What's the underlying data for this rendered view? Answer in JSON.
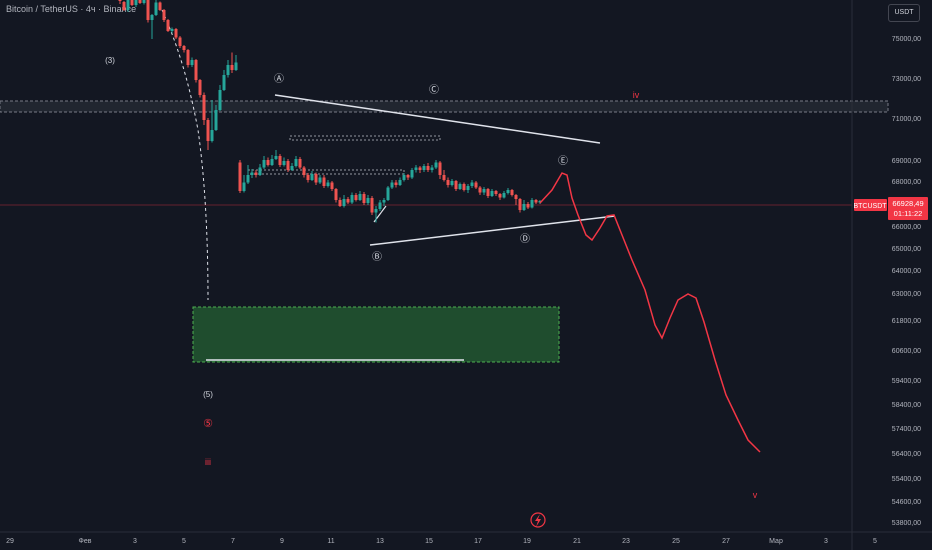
{
  "header": {
    "title": "Bitcoin / TetherUS · 4ч · Binance",
    "currency": "USDT"
  },
  "colors": {
    "background": "#131722",
    "up": "#26a69a",
    "down": "#ef5350",
    "wave_labels": "#b2b5be",
    "red_labels": "#f23645",
    "projection": "#f23645",
    "zone_fill": "#1f4d2e",
    "price_tag": "#f23645"
  },
  "current_price": {
    "symbol": "BTCUSDT",
    "price": "66928,49",
    "countdown": "01:11:22",
    "value": 66928.49
  },
  "chart_data": {
    "type": "candlestick",
    "y_axis": {
      "ticks": [
        "75000,00",
        "73000,00",
        "71000,00",
        "69000,00",
        "68000,00",
        "67000,00",
        "66000,00",
        "65000,00",
        "64000,00",
        "63000,00",
        "61800,00",
        "60600,00",
        "59400,00",
        "58400,00",
        "57400,00",
        "56400,00",
        "55400,00",
        "54600,00",
        "53800,00"
      ]
    },
    "x_axis": {
      "ticks": [
        "29",
        "Фев",
        "3",
        "5",
        "7",
        "9",
        "11",
        "13",
        "15",
        "17",
        "19",
        "21",
        "23",
        "25",
        "27",
        "Мар",
        "3",
        "5"
      ]
    },
    "wave_labels": [
      {
        "text": "(3)",
        "color": "wave"
      },
      {
        "text": "Ⓐ",
        "color": "wave"
      },
      {
        "text": "Ⓒ",
        "color": "wave"
      },
      {
        "text": "Ⓑ",
        "color": "wave"
      },
      {
        "text": "Ⓓ",
        "color": "wave"
      },
      {
        "text": "Ⓔ",
        "color": "wave"
      },
      {
        "text": "(5)",
        "color": "wave"
      },
      {
        "text": "⑤",
        "color": "red"
      },
      {
        "text": "iii",
        "color": "red"
      },
      {
        "text": "iv",
        "color": "red"
      },
      {
        "text": "v",
        "color": "red"
      }
    ],
    "candles": [
      [
        120,
        0,
        0,
        8,
        -10
      ],
      [
        124,
        4,
        20,
        22,
        2
      ],
      [
        128,
        20,
        -5,
        24,
        -8
      ],
      [
        132,
        -5,
        10,
        12,
        -8
      ],
      [
        136,
        10,
        -2,
        14,
        -4
      ],
      [
        140,
        -2,
        6,
        8,
        -5
      ],
      [
        144,
        6,
        0,
        9,
        -3
      ],
      [
        148,
        0,
        40,
        45,
        -2
      ],
      [
        152,
        40,
        30,
        78,
        28
      ],
      [
        156,
        30,
        5,
        32,
        0
      ],
      [
        160,
        5,
        20,
        22,
        3
      ],
      [
        164,
        20,
        40,
        44,
        18
      ],
      [
        168,
        40,
        62,
        64,
        38
      ],
      [
        172,
        62,
        58,
        66,
        55
      ],
      [
        176,
        58,
        75,
        78,
        56
      ],
      [
        180,
        75,
        92,
        96,
        72
      ],
      [
        184,
        92,
        100,
        105,
        90
      ],
      [
        188,
        100,
        130,
        135,
        98
      ],
      [
        192,
        130,
        120,
        134,
        115
      ],
      [
        196,
        120,
        160,
        165,
        118
      ],
      [
        200,
        160,
        190,
        195,
        158
      ],
      [
        204,
        190,
        240,
        250,
        185
      ],
      [
        208,
        240,
        282,
        300,
        236
      ],
      [
        212,
        282,
        260,
        285,
        200
      ],
      [
        216,
        260,
        220,
        262,
        210
      ],
      [
        220,
        220,
        180,
        222,
        170
      ],
      [
        224,
        180,
        150,
        182,
        140
      ],
      [
        228,
        150,
        130,
        155,
        120
      ],
      [
        232,
        130,
        140,
        146,
        105
      ],
      [
        236,
        140,
        125,
        142,
        110
      ],
      [
        240,
        125,
        182,
        186,
        120
      ],
      [
        244,
        182,
        165,
        185,
        150
      ],
      [
        248,
        165,
        150,
        168,
        130
      ],
      [
        252,
        150,
        145,
        156,
        138
      ],
      [
        256,
        145,
        150,
        155,
        140
      ],
      [
        260,
        150,
        135,
        152,
        128
      ],
      [
        264,
        135,
        120,
        138,
        112
      ],
      [
        268,
        120,
        130,
        133,
        115
      ],
      [
        272,
        130,
        118,
        132,
        110
      ],
      [
        276,
        118,
        112,
        120,
        100
      ],
      [
        280,
        112,
        130,
        134,
        108
      ],
      [
        284,
        130,
        122,
        133,
        115
      ],
      [
        288,
        122,
        140,
        144,
        118
      ],
      [
        292,
        140,
        132,
        142,
        126
      ],
      [
        296,
        132,
        118,
        135,
        112
      ],
      [
        300,
        118,
        135,
        138,
        114
      ],
      [
        304,
        135,
        150,
        155,
        132
      ],
      [
        308,
        150,
        160,
        165,
        146
      ],
      [
        312,
        160,
        148,
        162,
        142
      ],
      [
        316,
        148,
        165,
        170,
        145
      ],
      [
        320,
        165,
        155,
        168,
        150
      ],
      [
        324,
        155,
        172,
        176,
        150
      ],
      [
        328,
        172,
        165,
        175,
        160
      ],
      [
        332,
        165,
        178,
        182,
        162
      ],
      [
        336,
        178,
        200,
        205,
        176
      ],
      [
        340,
        200,
        212,
        214,
        195
      ],
      [
        344,
        212,
        198,
        215,
        190
      ],
      [
        348,
        198,
        205,
        208,
        194
      ],
      [
        352,
        205,
        190,
        208,
        185
      ],
      [
        356,
        190,
        200,
        203,
        186
      ],
      [
        360,
        200,
        188,
        202,
        182
      ],
      [
        364,
        188,
        206,
        210,
        184
      ],
      [
        368,
        206,
        196,
        210,
        190
      ],
      [
        372,
        196,
        225,
        230,
        192
      ],
      [
        376,
        225,
        218,
        245,
        212
      ],
      [
        380,
        218,
        205,
        222,
        200
      ],
      [
        384,
        205,
        200,
        212,
        196
      ],
      [
        388,
        200,
        175,
        202,
        172
      ],
      [
        392,
        175,
        165,
        178,
        160
      ],
      [
        396,
        165,
        170,
        175,
        160
      ],
      [
        400,
        170,
        160,
        172,
        155
      ],
      [
        404,
        160,
        150,
        163,
        146
      ],
      [
        408,
        150,
        155,
        160,
        148
      ],
      [
        412,
        155,
        140,
        158,
        136
      ],
      [
        416,
        140,
        135,
        145,
        130
      ],
      [
        420,
        135,
        140,
        146,
        132
      ],
      [
        424,
        140,
        132,
        144,
        128
      ],
      [
        428,
        132,
        140,
        144,
        126
      ],
      [
        432,
        140,
        135,
        145,
        130
      ],
      [
        436,
        135,
        125,
        138,
        120
      ],
      [
        440,
        125,
        150,
        158,
        122
      ],
      [
        444,
        150,
        160,
        163,
        140
      ],
      [
        448,
        160,
        170,
        175,
        155
      ],
      [
        452,
        170,
        162,
        173,
        158
      ],
      [
        456,
        162,
        178,
        182,
        160
      ],
      [
        460,
        178,
        168,
        180,
        165
      ],
      [
        464,
        168,
        180,
        183,
        165
      ],
      [
        468,
        180,
        172,
        186,
        168
      ],
      [
        472,
        172,
        165,
        176,
        160
      ],
      [
        476,
        165,
        175,
        178,
        162
      ],
      [
        480,
        175,
        185,
        190,
        172
      ],
      [
        484,
        185,
        178,
        190,
        174
      ],
      [
        488,
        178,
        192,
        196,
        176
      ],
      [
        492,
        192,
        182,
        194,
        178
      ],
      [
        496,
        182,
        188,
        192,
        180
      ],
      [
        500,
        188,
        195,
        200,
        186
      ],
      [
        504,
        195,
        186,
        197,
        182
      ],
      [
        508,
        186,
        180,
        189,
        176
      ],
      [
        512,
        180,
        190,
        193,
        178
      ],
      [
        516,
        190,
        198,
        210,
        188
      ],
      [
        520,
        198,
        220,
        225,
        196
      ],
      [
        524,
        220,
        208,
        222,
        200
      ],
      [
        528,
        208,
        215,
        218,
        204
      ],
      [
        532,
        215,
        200,
        217,
        196
      ],
      [
        536,
        200,
        205,
        208,
        198
      ],
      [
        540,
        205,
        202,
        208,
        200
      ]
    ],
    "projection_path": [
      [
        540,
        203
      ],
      [
        552,
        190
      ],
      [
        562,
        173
      ],
      [
        567,
        175
      ],
      [
        572,
        198
      ],
      [
        578,
        215
      ],
      [
        586,
        235
      ],
      [
        592,
        240
      ],
      [
        600,
        228
      ],
      [
        607,
        216
      ],
      [
        614,
        215
      ],
      [
        622,
        235
      ],
      [
        632,
        260
      ],
      [
        645,
        290
      ],
      [
        655,
        325
      ],
      [
        662,
        338
      ],
      [
        670,
        318
      ],
      [
        678,
        300
      ],
      [
        688,
        294
      ],
      [
        696,
        298
      ],
      [
        704,
        322
      ],
      [
        715,
        360
      ],
      [
        726,
        395
      ],
      [
        738,
        420
      ],
      [
        748,
        440
      ],
      [
        760,
        452
      ]
    ]
  }
}
